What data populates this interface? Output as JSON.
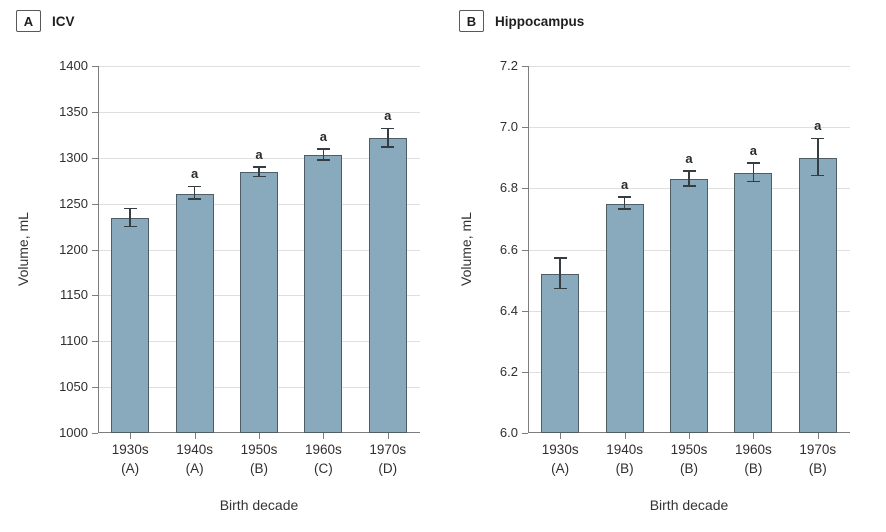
{
  "colors": {
    "bar_fill": "#88AABC",
    "bar_border": "#4E5D66",
    "error_bar": "#363D41",
    "gridline": "#DFDFDF",
    "axis": "#7D7D7D",
    "text": "#2F2F2F"
  },
  "chart_data": [
    {
      "type": "bar",
      "panel_letter": "A",
      "title": "ICV",
      "xlabel": "Birth decade",
      "ylabel": "Volume, mL",
      "ylim": [
        1000,
        1400
      ],
      "yticks": [
        1000,
        1050,
        1100,
        1150,
        1200,
        1250,
        1300,
        1350,
        1400
      ],
      "ytick_labels": [
        "1000",
        "1050",
        "1100",
        "1150",
        "1200",
        "1250",
        "1300",
        "1350",
        "1400"
      ],
      "categories": [
        "1930s",
        "1940s",
        "1950s",
        "1960s",
        "1970s"
      ],
      "group_labels": [
        "(A)",
        "(A)",
        "(B)",
        "(C)",
        "(D)"
      ],
      "values": [
        1234,
        1261,
        1284,
        1303,
        1321
      ],
      "errors": [
        10,
        7,
        5,
        6,
        10
      ],
      "sig_labels": [
        "",
        "a",
        "a",
        "a",
        "a"
      ],
      "grid": true,
      "legend": "none"
    },
    {
      "type": "bar",
      "panel_letter": "B",
      "title": "Hippocampus",
      "xlabel": "Birth decade",
      "ylabel": "Volume, mL",
      "ylim": [
        6.0,
        7.2
      ],
      "yticks": [
        6.0,
        6.2,
        6.4,
        6.6,
        6.8,
        7.0,
        7.2
      ],
      "ytick_labels": [
        "6.0",
        "6.2",
        "6.4",
        "6.6",
        "6.8",
        "7.0",
        "7.2"
      ],
      "categories": [
        "1930s",
        "1940s",
        "1950s",
        "1960s",
        "1970s"
      ],
      "group_labels": [
        "(A)",
        "(B)",
        "(B)",
        "(B)",
        "(B)"
      ],
      "values": [
        6.52,
        6.75,
        6.83,
        6.85,
        6.9
      ],
      "errors": [
        0.05,
        0.02,
        0.025,
        0.03,
        0.06
      ],
      "sig_labels": [
        "",
        "a",
        "a",
        "a",
        "a"
      ],
      "grid": true,
      "legend": "none"
    }
  ]
}
